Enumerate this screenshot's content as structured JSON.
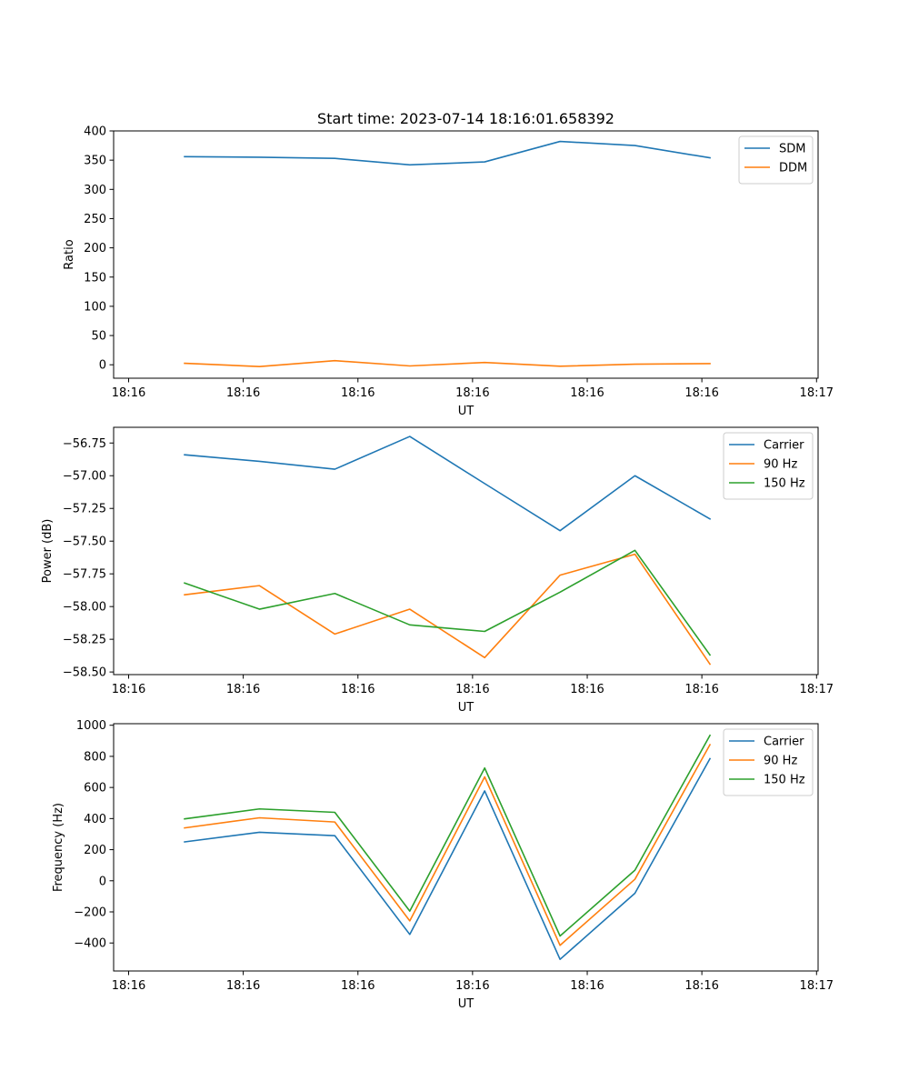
{
  "figure": {
    "title": "Start time: 2023-07-14 18:16:01.658392"
  },
  "chart_data": [
    {
      "type": "line",
      "title": "Start time: 2023-07-14 18:16:01.658392",
      "xlabel": "UT",
      "ylabel": "Ratio",
      "xlim": [
        0,
        1
      ],
      "ylim": [
        -23,
        400
      ],
      "x_ticks": [
        0.0213,
        0.184,
        0.3468,
        0.5095,
        0.6723,
        0.835,
        0.9978
      ],
      "x_tick_labels": [
        "18:16",
        "18:16",
        "18:16",
        "18:16",
        "18:16",
        "18:16",
        "18:17"
      ],
      "y_ticks": [
        0,
        50,
        100,
        150,
        200,
        250,
        300,
        350,
        400
      ],
      "y_tick_labels": [
        "0",
        "50",
        "100",
        "150",
        "200",
        "250",
        "300",
        "350",
        "400"
      ],
      "x": [
        0.1007,
        0.207,
        0.314,
        0.4204,
        0.5267,
        0.6337,
        0.74,
        0.8465
      ],
      "legend_position": "upper-right",
      "series": [
        {
          "name": "SDM",
          "color": "#1f77b4",
          "values": [
            356,
            355,
            353,
            342,
            347,
            382,
            375,
            354
          ]
        },
        {
          "name": "DDM",
          "color": "#ff7f0e",
          "values": [
            2.5,
            -3,
            7,
            -2,
            4,
            -2.5,
            1,
            2
          ]
        }
      ]
    },
    {
      "type": "line",
      "title": "",
      "xlabel": "UT",
      "ylabel": "Power (dB)",
      "xlim": [
        0,
        1
      ],
      "ylim": [
        -58.52,
        -56.63
      ],
      "x_ticks": [
        0.0213,
        0.184,
        0.3468,
        0.5095,
        0.6723,
        0.835,
        0.9978
      ],
      "x_tick_labels": [
        "18:16",
        "18:16",
        "18:16",
        "18:16",
        "18:16",
        "18:16",
        "18:17"
      ],
      "y_ticks": [
        -58.5,
        -58.25,
        -58.0,
        -57.75,
        -57.5,
        -57.25,
        -57.0,
        -56.75
      ],
      "y_tick_labels": [
        "−58.50",
        "−58.25",
        "−58.00",
        "−57.75",
        "−57.50",
        "−57.25",
        "−57.00",
        "−56.75"
      ],
      "x": [
        0.1007,
        0.207,
        0.314,
        0.4204,
        0.5267,
        0.6337,
        0.74,
        0.8465
      ],
      "legend_position": "upper-right",
      "series": [
        {
          "name": "Carrier",
          "color": "#1f77b4",
          "values": [
            -56.84,
            -56.89,
            -56.95,
            -56.7,
            -57.06,
            -57.42,
            -57.0,
            -57.33
          ]
        },
        {
          "name": "90 Hz",
          "color": "#ff7f0e",
          "values": [
            -57.91,
            -57.84,
            -58.21,
            -58.02,
            -58.39,
            -57.76,
            -57.6,
            -58.44
          ]
        },
        {
          "name": "150 Hz",
          "color": "#2ca02c",
          "values": [
            -57.82,
            -58.02,
            -57.9,
            -58.14,
            -58.19,
            -57.89,
            -57.57,
            -58.37
          ]
        }
      ]
    },
    {
      "type": "line",
      "title": "",
      "xlabel": "UT",
      "ylabel": "Frequency (Hz)",
      "xlim": [
        0,
        1
      ],
      "ylim": [
        -580,
        1010
      ],
      "x_ticks": [
        0.0213,
        0.184,
        0.3468,
        0.5095,
        0.6723,
        0.835,
        0.9978
      ],
      "x_tick_labels": [
        "18:16",
        "18:16",
        "18:16",
        "18:16",
        "18:16",
        "18:16",
        "18:17"
      ],
      "y_ticks": [
        -400,
        -200,
        0,
        200,
        400,
        600,
        800,
        1000
      ],
      "y_tick_labels": [
        "−400",
        "−200",
        "0",
        "200",
        "400",
        "600",
        "800",
        "1000"
      ],
      "x": [
        0.1007,
        0.207,
        0.314,
        0.4204,
        0.5267,
        0.6337,
        0.74,
        0.8465
      ],
      "legend_position": "upper-right",
      "series": [
        {
          "name": "Carrier",
          "color": "#1f77b4",
          "values": [
            250,
            312,
            290,
            -345,
            578,
            -505,
            -80,
            785
          ]
        },
        {
          "name": "90 Hz",
          "color": "#ff7f0e",
          "values": [
            340,
            405,
            378,
            -258,
            668,
            -415,
            10,
            875
          ]
        },
        {
          "name": "150 Hz",
          "color": "#2ca02c",
          "values": [
            398,
            462,
            440,
            -195,
            725,
            -355,
            68,
            935
          ]
        }
      ]
    }
  ]
}
